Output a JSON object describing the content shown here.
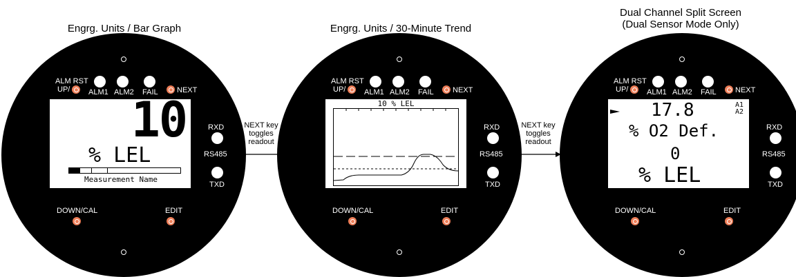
{
  "titles": {
    "bar": "Engrg. Units / Bar Graph",
    "trend": "Engrg. Units / 30-Minute Trend",
    "dual_line1": "Dual Channel Split Screen",
    "dual_line2": "(Dual Sensor Mode Only)"
  },
  "panel": {
    "alm_rst": "ALM RST",
    "up": "UP/",
    "alm1": "ALM1",
    "alm2": "ALM2",
    "fail": "FAIL",
    "next": "NEXT",
    "rxd": "RXD",
    "rs485": "RS485",
    "txd": "TXD",
    "down_cal": "DOWN/CAL",
    "edit": "EDIT"
  },
  "screen_bar": {
    "value": "10",
    "units": "% LEL",
    "name": "Measurement Name",
    "bar_fraction": 0.1
  },
  "screen_trend": {
    "header": "10 % LEL"
  },
  "screen_dual": {
    "ch1_value": "17.8",
    "ch1_units": "% O2 Def.",
    "ch2_value": "0",
    "ch2_units": "% LEL",
    "a1": "A1",
    "a2": "A2"
  },
  "notes": {
    "next_toggle_1": "NEXT key",
    "next_toggle_2": "toggles",
    "next_toggle_3": "readout"
  }
}
